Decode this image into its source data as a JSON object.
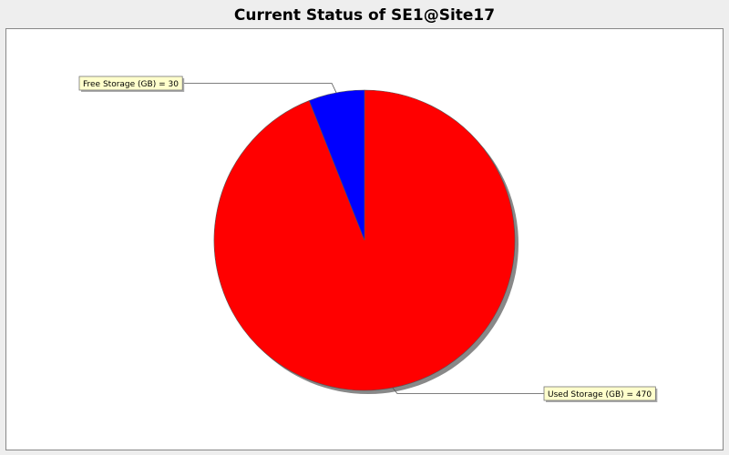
{
  "chart_data": {
    "type": "pie",
    "title": "Current Status of SE1@Site17",
    "slices": [
      {
        "label": "Used Storage (GB)",
        "value": 470,
        "color": "#ff0000"
      },
      {
        "label": "Free Storage (GB)",
        "value": 30,
        "color": "#0000ff"
      }
    ],
    "legend": "none",
    "label_format": "{label} = {value}"
  }
}
